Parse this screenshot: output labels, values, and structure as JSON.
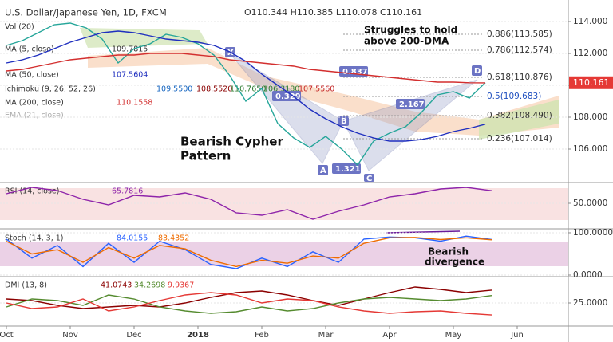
{
  "header": {
    "title": "U.S. Dollar/Japanese Yen, 1D, FXCM",
    "ohlc": "O110.344 H110.385 L110.078 C110.161"
  },
  "indicators": {
    "vol": "Vol (20)",
    "ma5": "MA (5, close)",
    "ma5_value": "109.7815",
    "ichimoku": "Ichimoku (9, 26, 52, 26)",
    "ichimoku_values": [
      "109.5500",
      "108.5520",
      "110.7650",
      "106.3180",
      "107.5560"
    ],
    "ema": "EMA (21, close)"
  },
  "annotations": {
    "pattern": "Bearish Cypher\nPattern",
    "struggle": "Struggles to hold\nabove 200-DMA",
    "divergence": "Bearish\ndivergence",
    "fib": [
      "0.886(113.585)",
      "0.786(112.574)",
      "0.618(110.876)",
      "0.5(109.683)",
      "0.382(108.490)",
      "0.236(107.014)"
    ],
    "points": [
      "X",
      "A",
      "B",
      "C",
      "D"
    ],
    "ratios": [
      "0.837",
      "0.329",
      "1.321",
      "2.167"
    ]
  },
  "chart_data": [
    {
      "type": "line",
      "xlim": [
        -0.1,
        8.8
      ],
      "ylim": [
        103.95,
        115.35
      ],
      "yticks": [
        {
          "value": 106,
          "label": "106.000"
        },
        {
          "value": 108,
          "label": "108.000"
        },
        {
          "value": 110,
          "label": "110.000"
        },
        {
          "value": 112,
          "label": "112.000"
        },
        {
          "value": 114,
          "label": "114.000"
        }
      ],
      "x": [
        0,
        0.25,
        0.5,
        0.75,
        1,
        1.25,
        1.5,
        1.75,
        2,
        2.25,
        2.5,
        2.75,
        3,
        3.25,
        3.5,
        3.75,
        4,
        4.25,
        4.5,
        4.75,
        5,
        5.25,
        5.5,
        5.75,
        6,
        6.25,
        6.5,
        6.75,
        7,
        7.25,
        7.5
      ],
      "series": [
        {
          "color": "#26a69a",
          "values": [
            112.5,
            112.8,
            113.3,
            113.8,
            113.9,
            113.6,
            112.9,
            111.4,
            112.3,
            112.6,
            113.2,
            113.0,
            112.6,
            111.9,
            110.6,
            109.0,
            109.8,
            107.6,
            106.7,
            106.1,
            106.8,
            106.0,
            105.0,
            106.5,
            107.0,
            107.4,
            108.3,
            109.4,
            109.6,
            109.2,
            110.161
          ]
        },
        {
          "name": "MA (50, close)",
          "color": "#1f2fbf",
          "values": [
            111.4,
            111.6,
            111.9,
            112.3,
            112.7,
            113.0,
            113.3,
            113.4,
            113.3,
            113.1,
            112.9,
            112.8,
            112.7,
            112.5,
            112.1,
            111.5,
            110.7,
            110.0,
            109.3,
            108.5,
            107.9,
            107.4,
            107.0,
            106.7,
            106.5,
            106.5,
            106.6,
            106.8,
            107.1,
            107.3,
            107.5604
          ]
        },
        {
          "name": "MA (200, close)",
          "color": "#d32f2f",
          "values": [
            110.9,
            111.0,
            111.2,
            111.4,
            111.6,
            111.7,
            111.8,
            111.9,
            111.9,
            112.0,
            112.0,
            112.0,
            111.9,
            111.8,
            111.6,
            111.5,
            111.4,
            111.3,
            111.2,
            111.0,
            110.9,
            110.8,
            110.7,
            110.6,
            110.5,
            110.4,
            110.3,
            110.2,
            110.2,
            110.16,
            110.1558
          ]
        }
      ]
    },
    {
      "type": "line",
      "title": "RSI (14, close)",
      "xlim": [
        -0.1,
        8.8
      ],
      "ylim": [
        20,
        75
      ],
      "yticks": [
        {
          "value": 50,
          "label": "50.0000"
        }
      ],
      "x": [
        0,
        0.4,
        0.8,
        1.2,
        1.6,
        2,
        2.4,
        2.8,
        3.2,
        3.6,
        4,
        4.4,
        4.8,
        5.2,
        5.6,
        6,
        6.4,
        6.8,
        7.2,
        7.6
      ],
      "series": [
        {
          "color": "#8e24aa",
          "values": [
            62,
            70,
            66,
            55,
            48,
            60,
            58,
            63,
            55,
            38,
            35,
            42,
            30,
            40,
            48,
            58,
            62,
            68,
            70,
            65.7816
          ]
        }
      ]
    },
    {
      "type": "line",
      "title": "Stoch (14, 3, 1)",
      "xlim": [
        -0.1,
        8.8
      ],
      "ylim": [
        0,
        107.5
      ],
      "yticks": [
        {
          "value": 100,
          "label": "100.0000"
        },
        {
          "value": 0,
          "label": "0.0000"
        }
      ],
      "x": [
        0,
        0.4,
        0.8,
        1.2,
        1.6,
        2,
        2.4,
        2.8,
        3.2,
        3.6,
        4,
        4.4,
        4.8,
        5.2,
        5.6,
        6,
        6.4,
        6.8,
        7.2,
        7.6
      ],
      "series": [
        {
          "color": "#2962ff",
          "values": [
            85,
            40,
            70,
            20,
            75,
            30,
            80,
            60,
            25,
            15,
            40,
            20,
            55,
            30,
            85,
            90,
            88,
            80,
            92,
            84.0155
          ]
        },
        {
          "color": "#ef6c00",
          "values": [
            80,
            50,
            60,
            30,
            65,
            40,
            70,
            62,
            35,
            20,
            35,
            28,
            45,
            40,
            75,
            88,
            89,
            84,
            88,
            83.4352
          ]
        }
      ]
    },
    {
      "type": "line",
      "title": "DMI (13, 8)",
      "xlim": [
        -0.1,
        8.8
      ],
      "ylim": [
        -3,
        57
      ],
      "yticks": [
        {
          "value": 25,
          "label": "25.0000"
        }
      ],
      "xticks": [
        {
          "value": 0,
          "label": "Oct"
        },
        {
          "value": 1,
          "label": "Nov"
        },
        {
          "value": 2,
          "label": "Dec"
        },
        {
          "value": 3,
          "label": "2018"
        },
        {
          "value": 4,
          "label": "Feb"
        },
        {
          "value": 5,
          "label": "Mar"
        },
        {
          "value": 6,
          "label": "Apr"
        },
        {
          "value": 7,
          "label": "May"
        },
        {
          "value": 8,
          "label": "Jun"
        }
      ],
      "x": [
        0,
        0.4,
        0.8,
        1.2,
        1.6,
        2,
        2.4,
        2.8,
        3.2,
        3.6,
        4,
        4.4,
        4.8,
        5.2,
        5.6,
        6,
        6.4,
        6.8,
        7.2,
        7.6
      ],
      "series": [
        {
          "color": "#8b0000",
          "values": [
            30,
            28,
            22,
            18,
            20,
            22,
            20,
            25,
            32,
            38,
            40,
            35,
            28,
            22,
            30,
            38,
            45,
            42,
            38,
            41.0743
          ]
        },
        {
          "color": "#558b2f",
          "values": [
            20,
            30,
            28,
            22,
            35,
            30,
            20,
            15,
            12,
            14,
            20,
            15,
            18,
            25,
            30,
            32,
            30,
            28,
            30,
            34.2698
          ]
        },
        {
          "color": "#e53935",
          "values": [
            25,
            18,
            20,
            30,
            15,
            20,
            28,
            35,
            38,
            35,
            25,
            30,
            28,
            20,
            15,
            12,
            14,
            15,
            12,
            9.9367
          ]
        }
      ]
    }
  ]
}
